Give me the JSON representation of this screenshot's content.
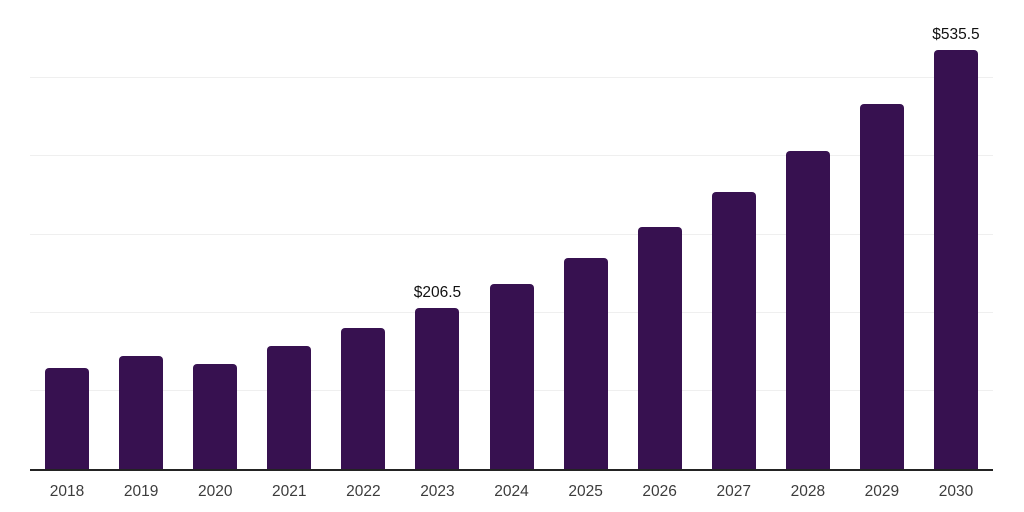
{
  "chart_data": {
    "type": "bar",
    "title": "",
    "xlabel": "",
    "ylabel": "",
    "categories": [
      "2018",
      "2019",
      "2020",
      "2021",
      "2022",
      "2023",
      "2024",
      "2025",
      "2026",
      "2027",
      "2028",
      "2029",
      "2030"
    ],
    "values": [
      129,
      145,
      134,
      157,
      181,
      206.5,
      237,
      270,
      310,
      354,
      407,
      467,
      535.5
    ],
    "data_labels": {
      "2023": "$206.5",
      "2030": "$535.5"
    },
    "value_prefix": "$",
    "ylim": [
      0,
      600
    ],
    "y_gridline_step": 100,
    "y_tick_labels_visible": false,
    "grid": "horizontal",
    "legend_position": "none"
  },
  "colors": {
    "bar": "#371150",
    "axis_line": "#232323",
    "gridline": "#efefef",
    "top_gridline": "#e6e6e6",
    "tick_label": "#3c3c3c",
    "data_label": "#111111",
    "background": "#ffffff"
  }
}
